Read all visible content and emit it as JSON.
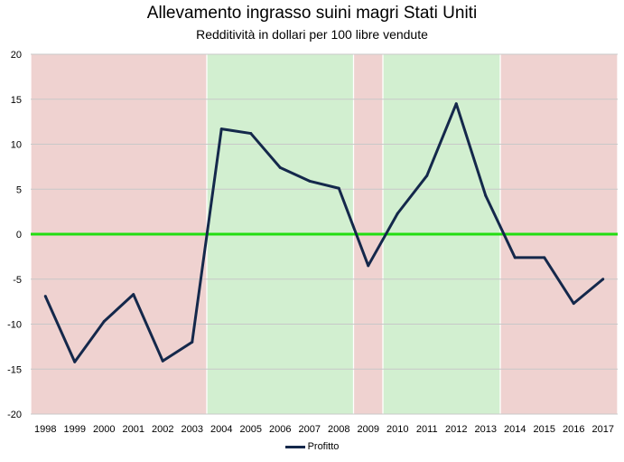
{
  "chart_data": {
    "type": "line",
    "title": "Allevamento ingrasso suini magri Stati Uniti",
    "subtitle": "Redditività in dollari per 100 libre vendute",
    "x": [
      "1998",
      "1999",
      "2000",
      "2001",
      "2002",
      "2003",
      "2004",
      "2005",
      "2006",
      "2007",
      "2008",
      "2009",
      "2010",
      "2011",
      "2012",
      "2013",
      "2014",
      "2015",
      "2016",
      "2017"
    ],
    "series": [
      {
        "name": "Profitto",
        "color": "#14284b",
        "values": [
          -6.9,
          -14.2,
          -9.7,
          -6.7,
          -14.1,
          -12.0,
          11.7,
          11.2,
          7.4,
          5.9,
          5.1,
          -3.5,
          2.3,
          6.5,
          14.5,
          4.3,
          -2.6,
          -2.6,
          -7.7,
          -5.0
        ]
      }
    ],
    "zero_line": {
      "value": 0,
      "color": "#22dd11"
    },
    "ylim": [
      -20,
      20
    ],
    "yticks": [
      -20,
      -15,
      -10,
      -5,
      0,
      5,
      10,
      15,
      20
    ],
    "grid": true,
    "legend_position": "bottom",
    "shaded_bands": [
      {
        "from": "1998",
        "to": "2003",
        "kind": "loss",
        "color": "#efd2d0"
      },
      {
        "from": "2004",
        "to": "2008",
        "kind": "profit",
        "color": "#d2efd0"
      },
      {
        "from": "2009",
        "to": "2009",
        "kind": "loss",
        "color": "#efd2d0"
      },
      {
        "from": "2010",
        "to": "2013",
        "kind": "profit",
        "color": "#d2efd0"
      },
      {
        "from": "2014",
        "to": "2017",
        "kind": "loss",
        "color": "#efd2d0"
      }
    ]
  }
}
